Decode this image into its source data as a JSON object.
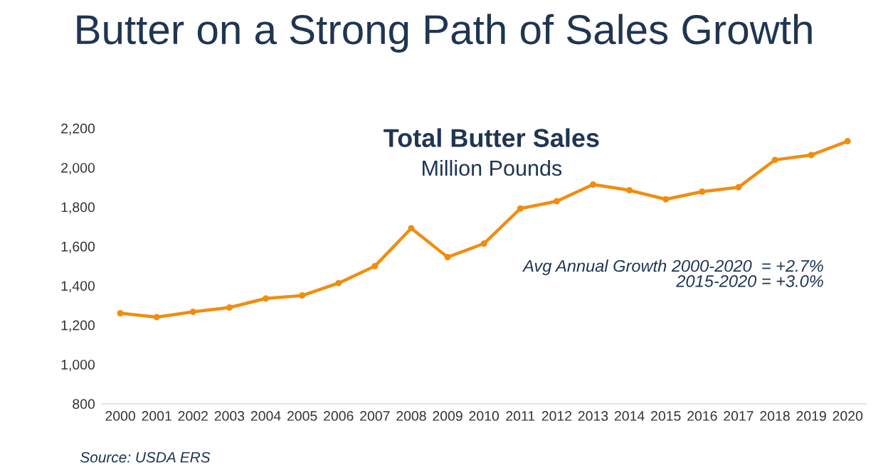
{
  "chart_data": {
    "type": "line",
    "title": "Butter on a Strong Path of Sales Growth",
    "subtitle": "Total Butter Sales",
    "ylabel": "Million Pounds",
    "categories": [
      "2000",
      "2001",
      "2002",
      "2003",
      "2004",
      "2005",
      "2006",
      "2007",
      "2008",
      "2009",
      "2010",
      "2011",
      "2012",
      "2013",
      "2014",
      "2015",
      "2016",
      "2017",
      "2018",
      "2019",
      "2020"
    ],
    "series": [
      {
        "color": "#f28c0f",
        "values": [
          1260,
          1240,
          1267,
          1289,
          1335,
          1350,
          1413,
          1499,
          1692,
          1545,
          1614,
          1792,
          1829,
          1914,
          1885,
          1839,
          1878,
          1900,
          2039,
          2064,
          2134
        ]
      }
    ],
    "ylim": [
      800,
      2200
    ],
    "yticks": [
      {
        "value": 800,
        "label": "800"
      },
      {
        "value": 1000,
        "label": "1,000"
      },
      {
        "value": 1200,
        "label": "1,200"
      },
      {
        "value": 1400,
        "label": "1,400"
      },
      {
        "value": 1600,
        "label": "1,600"
      },
      {
        "value": 1800,
        "label": "1,800"
      },
      {
        "value": 2000,
        "label": "2,000"
      },
      {
        "value": 2200,
        "label": "2,200"
      }
    ],
    "marker": "circle",
    "line_style": "solid",
    "grid": false,
    "annotations": [
      "Avg Annual Growth 2000-2020  = +2.7%",
      "2015-2020 = +3.0%",
      "Source: USDA ERS"
    ]
  }
}
